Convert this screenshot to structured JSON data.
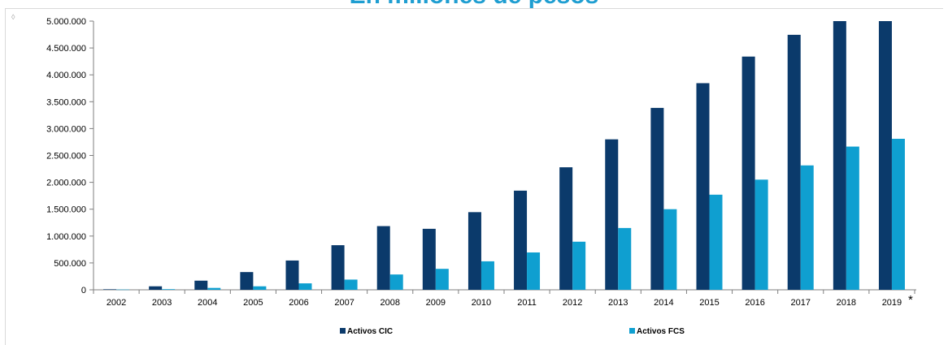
{
  "chart_data": {
    "type": "bar",
    "title": "En millones de pesos",
    "categories": [
      "2002",
      "2003",
      "2004",
      "2005",
      "2006",
      "2007",
      "2008",
      "2009",
      "2010",
      "2011",
      "2012",
      "2013",
      "2014",
      "2015",
      "2016",
      "2017",
      "2018",
      "2019"
    ],
    "footnote_marker": "*",
    "series": [
      {
        "name": "Activos CIC",
        "color": "#0b3a6b",
        "values": [
          10000,
          65000,
          170000,
          330000,
          545000,
          830000,
          1185000,
          1135000,
          1445000,
          1845000,
          2280000,
          2800000,
          3385000,
          3845000,
          4340000,
          4745000,
          5000000,
          5000000
        ]
      },
      {
        "name": "Activos FCS",
        "color": "#0f9fd0",
        "values": [
          5000,
          12000,
          35000,
          65000,
          120000,
          190000,
          285000,
          390000,
          530000,
          695000,
          895000,
          1150000,
          1500000,
          1770000,
          2050000,
          2315000,
          2665000,
          2810000
        ]
      }
    ],
    "yticks": [
      "0",
      "500.000",
      "1.000.000",
      "1.500.000",
      "2.000.000",
      "2.500.000",
      "3.000.000",
      "3.500.000",
      "4.000.000",
      "4.500.000",
      "5.000.000"
    ],
    "ylim": [
      0,
      5000000
    ],
    "xlabel": "",
    "ylabel": "",
    "grid": false,
    "legend": "bottom"
  },
  "ui": {
    "corner_mark": "◊"
  }
}
